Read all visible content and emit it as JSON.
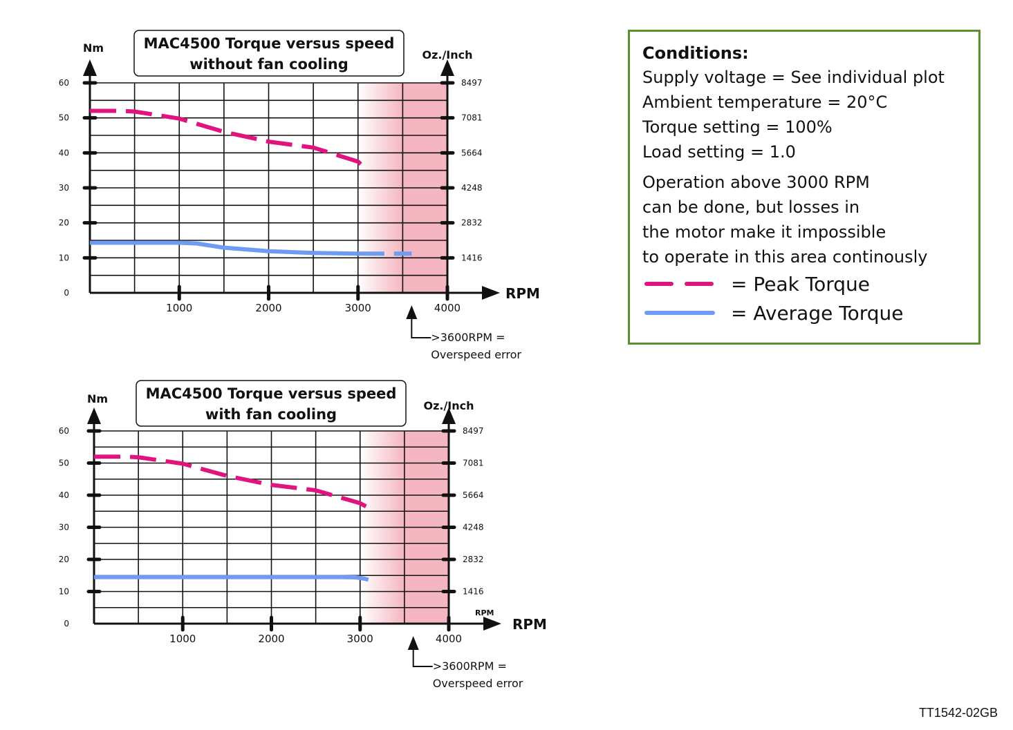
{
  "chart_data": [
    {
      "type": "line",
      "title": [
        "MAC4500  Torque versus speed",
        "without fan cooling"
      ],
      "ylabel": "Nm",
      "y2label": "Oz./Inch",
      "xlabel": "RPM",
      "x_tick_small_label": "",
      "ylim": [
        0,
        60
      ],
      "xlim": [
        0,
        4000
      ],
      "y_ticks": [
        "0",
        "10",
        "20",
        "30",
        "40",
        "50",
        "60"
      ],
      "y2_ticks": [
        "1416",
        "2832",
        "4248",
        "5664",
        "7081",
        "8497"
      ],
      "x_ticks": [
        "1000",
        "2000",
        "3000",
        "4000"
      ],
      "shaded_from": 3000,
      "overspeed_at": 3600,
      "overspeed_label": [
        ">3600RPM =",
        "Overspeed error"
      ],
      "series": [
        {
          "name": "Peak Torque",
          "style": "dashed",
          "color": "#e0147f",
          "x": [
            0,
            350,
            500,
            1000,
            1500,
            2000,
            2500,
            3000,
            3050
          ],
          "y": [
            52,
            52,
            51.8,
            49.8,
            46,
            43.2,
            41.5,
            37.5,
            36.3
          ]
        },
        {
          "name": "Average Torque",
          "style": "solid",
          "color": "#6f9cf2",
          "x": [
            0,
            500,
            1000,
            1200,
            1500,
            2000,
            2500,
            3000
          ],
          "y": [
            14.3,
            14.3,
            14.3,
            14.1,
            12.9,
            11.9,
            11.4,
            11.2
          ]
        },
        {
          "name": "Average Torque",
          "style": "dashed",
          "color": "#6f9cf2",
          "x": [
            3000,
            3600
          ],
          "y": [
            11.2,
            11.2
          ]
        }
      ]
    },
    {
      "type": "line",
      "title": [
        "MAC4500  Torque versus speed",
        "with fan cooling"
      ],
      "ylabel": "Nm",
      "y2label": "Oz./Inch",
      "xlabel": "RPM",
      "x_tick_small_label": "RPM",
      "ylim": [
        0,
        60
      ],
      "xlim": [
        0,
        4000
      ],
      "y_ticks": [
        "0",
        "10",
        "20",
        "30",
        "40",
        "50",
        "60"
      ],
      "y2_ticks": [
        "1416",
        "2832",
        "4248",
        "5664",
        "7081",
        "8497"
      ],
      "x_ticks": [
        "1000",
        "2000",
        "3000",
        "4000"
      ],
      "shaded_from": 3000,
      "overspeed_at": 3600,
      "overspeed_label": [
        ">3600RPM =",
        "Overspeed error"
      ],
      "series": [
        {
          "name": "Peak Torque",
          "style": "dashed",
          "color": "#e0147f",
          "x": [
            0,
            350,
            500,
            1000,
            1500,
            2000,
            2500,
            3000,
            3080
          ],
          "y": [
            52,
            52,
            51.8,
            49.8,
            46,
            43.2,
            41.5,
            37.5,
            36.3
          ]
        },
        {
          "name": "Average Torque",
          "style": "solid",
          "color": "#6f9cf2",
          "x": [
            0,
            500,
            1000,
            1500,
            2000,
            2500,
            2800
          ],
          "y": [
            14.5,
            14.5,
            14.5,
            14.5,
            14.5,
            14.5,
            14.5
          ]
        },
        {
          "name": "Average Torque",
          "style": "dashed",
          "color": "#6f9cf2",
          "x": [
            2800,
            2950,
            3050,
            3150
          ],
          "y": [
            14.5,
            14.4,
            14.0,
            13.2
          ]
        }
      ]
    }
  ],
  "conditions": {
    "title": "Conditions:",
    "lines": [
      "Supply voltage = See individual plot",
      "Ambient temperature = 20°C",
      "Torque setting = 100%",
      "Load setting = 1.0"
    ],
    "note_lines": [
      "Operation above 3000 RPM",
      "can be done, but losses in",
      "the motor make it impossible",
      "to operate in this area continously"
    ],
    "legend": [
      {
        "label": "= Peak Torque",
        "color": "#e0147f",
        "style": "dashed"
      },
      {
        "label": "= Average Torque",
        "color": "#6f9cf2",
        "style": "solid"
      }
    ]
  },
  "footer": "TT1542-02GB"
}
